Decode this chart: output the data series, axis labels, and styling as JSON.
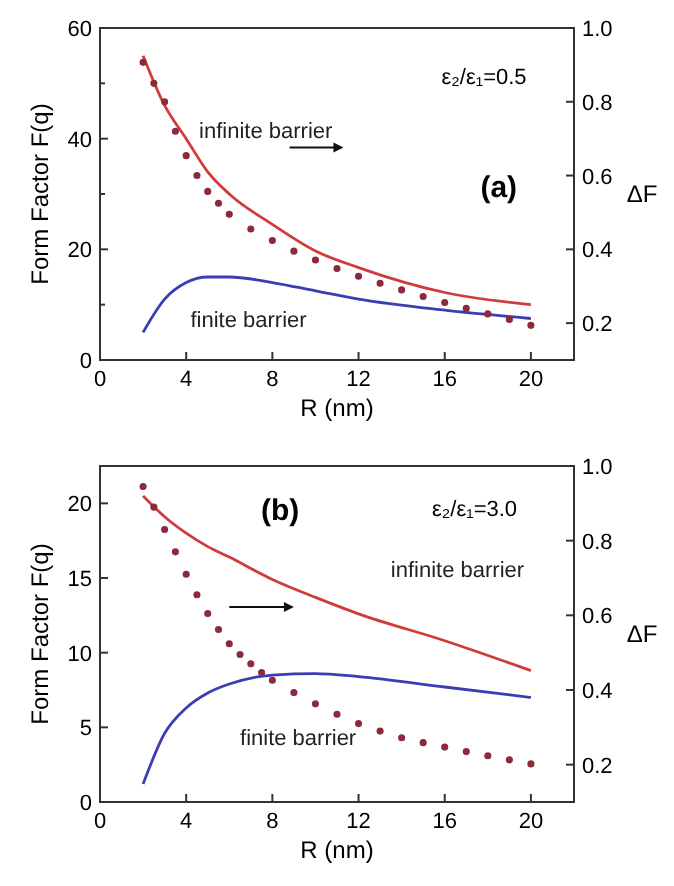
{
  "chart_data": [
    {
      "type": "line",
      "xlabel": "R (nm)",
      "ylabel": "Form Factor F(q)",
      "y2label": "ΔF",
      "xlim": [
        0,
        22
      ],
      "xticks": [
        0,
        4,
        8,
        12,
        16,
        20
      ],
      "ylim": [
        0,
        60
      ],
      "yticks": [
        0,
        20,
        40,
        {
          "value": 10,
          "label": null
        },
        {
          "value": 30,
          "label": null
        },
        {
          "value": 50,
          "label": null
        },
        60
      ],
      "y2lim": [
        0.1,
        1.0
      ],
      "y2ticks": [
        0.2,
        0.4,
        0.6,
        0.8,
        {
          "value": 1,
          "label": "1.0"
        }
      ],
      "annotations": [
        "ε₂/ε₁=0.5",
        "(a)"
      ],
      "x": [
        2,
        3,
        4,
        5,
        6,
        8,
        10,
        12,
        16,
        20
      ],
      "series": [
        {
          "name": "infinite barrier",
          "color": "#d03c3c",
          "values": [
            55,
            46,
            40,
            34,
            30,
            24.5,
            19.7,
            16.7,
            12.2,
            10
          ]
        },
        {
          "name": "finite barrier",
          "color": "#3c3cb4",
          "values": [
            5,
            11,
            14,
            15,
            15,
            14,
            12.5,
            11,
            9,
            7.5
          ]
        },
        {
          "type": "scatter",
          "axis": "y2",
          "marker": "circle",
          "color": "#8b2a3a",
          "x": [
            2,
            2.5,
            3,
            3.5,
            4,
            4.5,
            5,
            5.5,
            6,
            7,
            8,
            9,
            10,
            11,
            12,
            13,
            14,
            15,
            16,
            17,
            18,
            19,
            20
          ],
          "values": [
            0.907,
            0.85,
            0.8,
            0.72,
            0.654,
            0.6,
            0.557,
            0.525,
            0.495,
            0.455,
            0.424,
            0.395,
            0.371,
            0.348,
            0.327,
            0.308,
            0.29,
            0.272,
            0.256,
            0.24,
            0.225,
            0.21,
            0.194
          ]
        }
      ]
    },
    {
      "type": "line",
      "xlabel": "R (nm)",
      "ylabel": "Form Factor F(q)",
      "y2label": "ΔF",
      "xlim": [
        0,
        22
      ],
      "xticks": [
        0,
        4,
        8,
        12,
        16,
        20
      ],
      "ylim": [
        0,
        22.5
      ],
      "yticks": [
        0,
        5,
        10,
        15,
        20
      ],
      "y2lim": [
        0.1,
        1.0
      ],
      "y2ticks": [
        0.2,
        0.4,
        0.6,
        0.8,
        {
          "value": 1,
          "label": "1.0"
        }
      ],
      "annotations": [
        "(b)",
        "ε₂/ε₁=3.0"
      ],
      "x": [
        2,
        3,
        4,
        5,
        6,
        8,
        10,
        12,
        16,
        20
      ],
      "series": [
        {
          "name": "infinite barrier",
          "color": "#d03c3c",
          "values": [
            20.5,
            19.1,
            18,
            17.1,
            16.4,
            14.9,
            13.7,
            12.6,
            10.8,
            8.8
          ]
        },
        {
          "name": "finite barrier",
          "color": "#3c3cb4",
          "values": [
            1.2,
            4.6,
            6.3,
            7.3,
            7.9,
            8.5,
            8.6,
            8.4,
            7.7,
            7.0
          ]
        },
        {
          "type": "scatter",
          "axis": "y2",
          "marker": "circle",
          "color": "#8b2a3a",
          "x": [
            2,
            2.5,
            3,
            3.5,
            4,
            4.5,
            5,
            5.5,
            6,
            6.5,
            7,
            7.5,
            8,
            9,
            10,
            11,
            12,
            13,
            14,
            15,
            16,
            17,
            18,
            19,
            20
          ],
          "values": [
            0.945,
            0.89,
            0.83,
            0.77,
            0.71,
            0.655,
            0.605,
            0.562,
            0.524,
            0.495,
            0.47,
            0.447,
            0.426,
            0.393,
            0.363,
            0.335,
            0.31,
            0.29,
            0.272,
            0.259,
            0.247,
            0.235,
            0.224,
            0.213,
            0.202
          ]
        }
      ]
    }
  ]
}
